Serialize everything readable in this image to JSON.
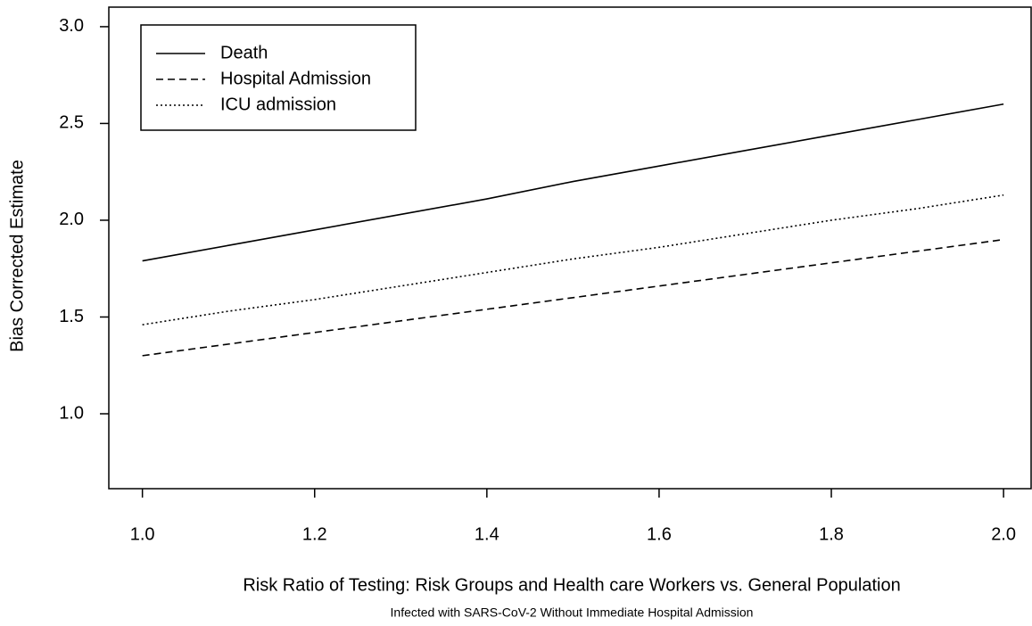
{
  "chart_data": {
    "type": "line",
    "x_label": "Risk Ratio of Testing: Risk Groups and Health care Workers vs. General Population",
    "subtitle": "Infected with SARS-CoV-2 Without Immediate Hospital Admission",
    "y_label": "Bias Corrected Estimate",
    "x": [
      1.0,
      1.1,
      1.2,
      1.3,
      1.4,
      1.5,
      1.6,
      1.7,
      1.8,
      1.9,
      2.0
    ],
    "series": [
      {
        "name": "Death",
        "color": "#000000",
        "dash": "solid",
        "values": [
          1.79,
          1.87,
          1.95,
          2.03,
          2.11,
          2.2,
          2.28,
          2.36,
          2.44,
          2.52,
          2.6
        ]
      },
      {
        "name": "Hospital Admission",
        "color": "#000000",
        "dash": "dashed",
        "values": [
          1.3,
          1.36,
          1.42,
          1.48,
          1.54,
          1.6,
          1.66,
          1.72,
          1.78,
          1.84,
          1.9
        ]
      },
      {
        "name": "ICU admission",
        "color": "#000000",
        "dash": "dotted",
        "values": [
          1.46,
          1.53,
          1.59,
          1.66,
          1.73,
          1.8,
          1.86,
          1.93,
          2.0,
          2.06,
          2.13
        ]
      }
    ],
    "xlim": [
      0.961,
      2.032
    ],
    "ylim": [
      0.613,
      3.101
    ],
    "xticks": [
      {
        "value": 1,
        "label": "1.0"
      },
      1.2,
      1.4,
      1.6,
      1.8,
      {
        "value": 2,
        "label": "2.0"
      }
    ],
    "yticks": [
      {
        "value": 1,
        "label": "1.0"
      },
      1.5,
      {
        "value": 2,
        "label": "2.0"
      },
      2.5,
      {
        "value": 3,
        "label": "3.0"
      }
    ],
    "legend": "top-left",
    "grid": false
  }
}
